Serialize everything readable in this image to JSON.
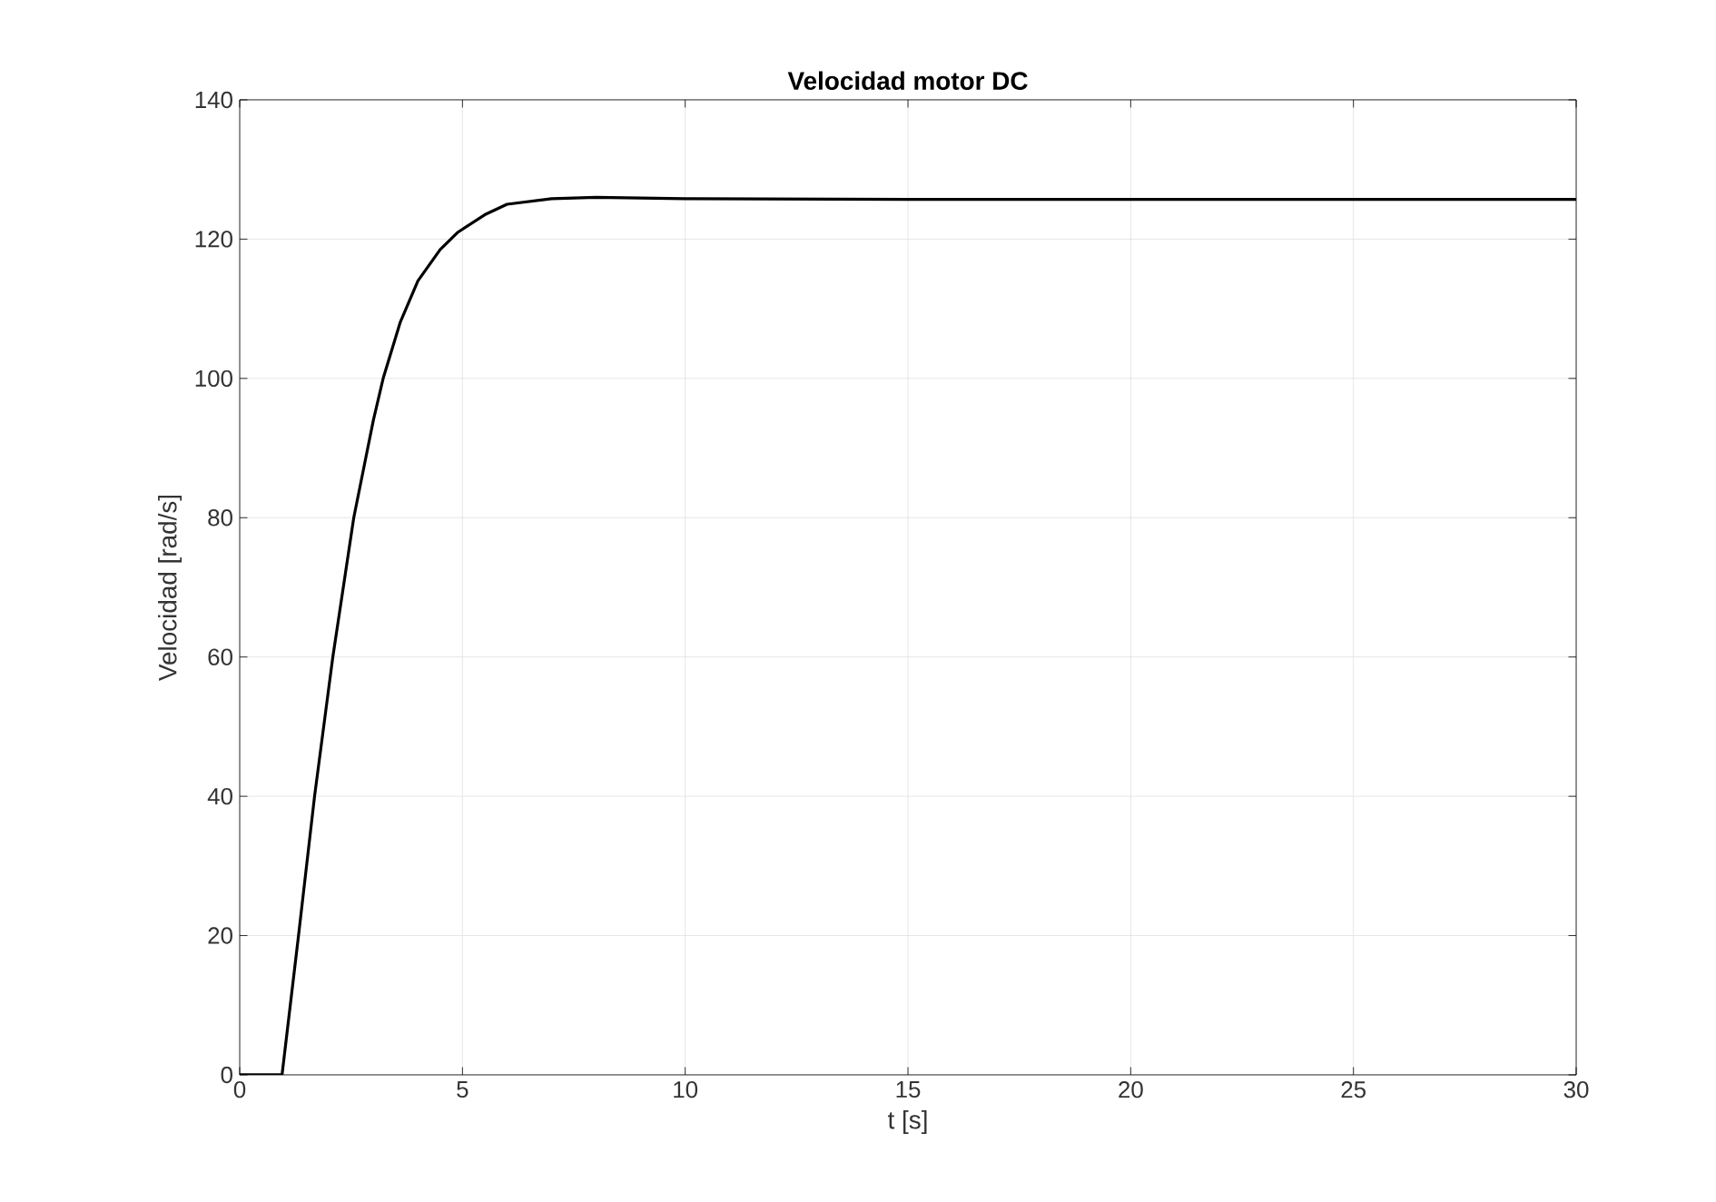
{
  "chart_data": {
    "type": "line",
    "title": "Velocidad motor DC",
    "xlabel": "t [s]",
    "ylabel": "Velocidad [rad/s]",
    "x": [
      0,
      0.95,
      1.32,
      1.68,
      2.09,
      2.56,
      3.0,
      3.22,
      3.6,
      4.0,
      4.5,
      4.9,
      5.5,
      6,
      7,
      8,
      10,
      15,
      30
    ],
    "series": [
      {
        "color": "#000000",
        "values": [
          0,
          0,
          20,
          40,
          60,
          80,
          94,
          100,
          108,
          114,
          118.5,
          121,
          123.5,
          125,
          125.8,
          126,
          125.8,
          125.7,
          125.7
        ]
      }
    ],
    "xlim": [
      0,
      30
    ],
    "ylim": [
      0,
      140
    ],
    "xticks": [
      0,
      5,
      10,
      15,
      20,
      25,
      30
    ],
    "yticks": [
      0,
      20,
      40,
      60,
      80,
      100,
      120,
      140
    ],
    "grid": true,
    "marker": "none",
    "line_style": "solid"
  }
}
